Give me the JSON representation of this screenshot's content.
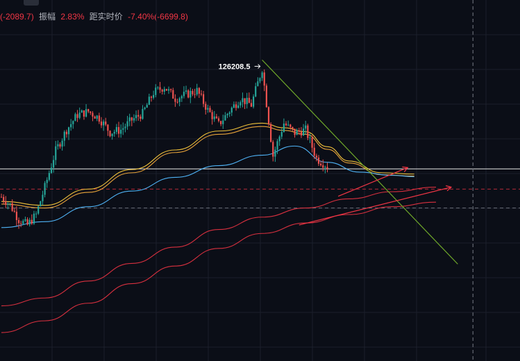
{
  "toolbar": {
    "icons": [
      "text-tool-icon",
      "pencil-icon",
      "indicator-icon",
      "crop-icon",
      "more-icon"
    ]
  },
  "info_bar": {
    "change_value": "(-2089.7)",
    "amplitude_label": "振幅",
    "amplitude_value": "2.83%",
    "distance_label": "距实时价",
    "distance_value": "-7.40%(-6699.8)"
  },
  "colors": {
    "background": "#0b0e17",
    "candle_up": "#26a69a",
    "candle_down": "#ef5350",
    "ma_yellow": "#f0c23b",
    "ma_orange": "#e8a33a",
    "ma_blue": "#4fb3f6",
    "ma_red": "#d9303f",
    "trendline_green": "#6fa82a",
    "channel_red": "#f23645"
  },
  "chart_data": {
    "type": "candlestick",
    "peak_label": "126208.5",
    "ylim": [
      84000,
      133500
    ],
    "x_count": 150,
    "close_path": [
      [
        0,
        106500
      ],
      [
        4,
        105300
      ],
      [
        8,
        103000
      ],
      [
        12,
        102200
      ],
      [
        16,
        103800
      ],
      [
        20,
        108000
      ],
      [
        25,
        113600
      ],
      [
        30,
        116800
      ],
      [
        35,
        119100
      ],
      [
        40,
        119600
      ],
      [
        45,
        118600
      ],
      [
        50,
        116400
      ],
      [
        55,
        116800
      ],
      [
        60,
        118300
      ],
      [
        65,
        119300
      ],
      [
        70,
        122500
      ],
      [
        75,
        123400
      ],
      [
        80,
        121600
      ],
      [
        85,
        122200
      ],
      [
        90,
        122800
      ],
      [
        95,
        119800
      ],
      [
        100,
        117600
      ],
      [
        105,
        119700
      ],
      [
        110,
        121600
      ],
      [
        115,
        120600
      ],
      [
        120,
        126200
      ],
      [
        125,
        112800
      ],
      [
        130,
        117800
      ],
      [
        135,
        116300
      ],
      [
        140,
        116800
      ],
      [
        145,
        112400
      ],
      [
        150,
        111200
      ],
      [
        155,
        107300
      ],
      [
        160,
        104800
      ],
      [
        165,
        106400
      ],
      [
        170,
        106200
      ],
      [
        175,
        105400
      ],
      [
        180,
        104200
      ],
      [
        185,
        105600
      ],
      [
        190,
        107700
      ],
      [
        195,
        110000
      ],
      [
        200,
        107600
      ]
    ],
    "moving_averages": [
      {
        "color": "yellow",
        "points": [
          [
            0,
            105800
          ],
          [
            20,
            105200
          ],
          [
            40,
            107700
          ],
          [
            60,
            110700
          ],
          [
            80,
            113700
          ],
          [
            100,
            116600
          ],
          [
            120,
            117800
          ],
          [
            130,
            117100
          ],
          [
            140,
            116500
          ],
          [
            150,
            114200
          ],
          [
            160,
            112000
          ],
          [
            175,
            110200
          ],
          [
            190,
            110000
          ]
        ]
      },
      {
        "color": "orange",
        "points": [
          [
            0,
            105400
          ],
          [
            20,
            104800
          ],
          [
            40,
            107200
          ],
          [
            60,
            110200
          ],
          [
            80,
            113300
          ],
          [
            100,
            116100
          ],
          [
            120,
            117300
          ],
          [
            130,
            116700
          ],
          [
            140,
            116100
          ],
          [
            150,
            113800
          ],
          [
            160,
            111700
          ],
          [
            175,
            109900
          ],
          [
            190,
            109700
          ]
        ]
      },
      {
        "color": "blue",
        "points": [
          [
            0,
            101800
          ],
          [
            20,
            102700
          ],
          [
            40,
            105000
          ],
          [
            60,
            107400
          ],
          [
            80,
            109500
          ],
          [
            100,
            111300
          ],
          [
            120,
            112900
          ],
          [
            135,
            114300
          ],
          [
            150,
            111800
          ],
          [
            165,
            110300
          ],
          [
            180,
            109800
          ],
          [
            190,
            109600
          ]
        ]
      },
      {
        "color": "red",
        "points": [
          [
            0,
            89800
          ],
          [
            20,
            91000
          ],
          [
            40,
            93600
          ],
          [
            60,
            96300
          ],
          [
            80,
            98800
          ],
          [
            100,
            101500
          ],
          [
            120,
            103400
          ],
          [
            140,
            104800
          ],
          [
            160,
            106200
          ],
          [
            180,
            107300
          ],
          [
            200,
            108000
          ]
        ]
      },
      {
        "color": "red",
        "points": [
          [
            0,
            85700
          ],
          [
            20,
            87500
          ],
          [
            40,
            90200
          ],
          [
            60,
            93200
          ],
          [
            80,
            95900
          ],
          [
            100,
            98600
          ],
          [
            120,
            100900
          ],
          [
            140,
            102500
          ],
          [
            160,
            103800
          ],
          [
            180,
            105000
          ],
          [
            200,
            105700
          ]
        ]
      }
    ],
    "drawn_lines": [
      {
        "name": "descending-trendline",
        "color": "green",
        "points": [
          [
            120,
            127500
          ],
          [
            210,
            96200
          ]
        ]
      },
      {
        "name": "channel-upper",
        "color": "red",
        "points": [
          [
            155,
            106600
          ],
          [
            187,
            111000
          ]
        ]
      },
      {
        "name": "channel-lower",
        "color": "red",
        "points": [
          [
            137,
            102200
          ],
          [
            207,
            108000
          ]
        ]
      }
    ],
    "horizontal_levels": [
      {
        "value": 110800,
        "style": "solid",
        "color": "white"
      },
      {
        "value": 107700,
        "style": "dashed",
        "color": "red"
      },
      {
        "value": 104800,
        "style": "dashed",
        "color": "gray"
      }
    ],
    "vertical_marker": {
      "x": 217,
      "style": "dashed",
      "color": "gray"
    }
  }
}
